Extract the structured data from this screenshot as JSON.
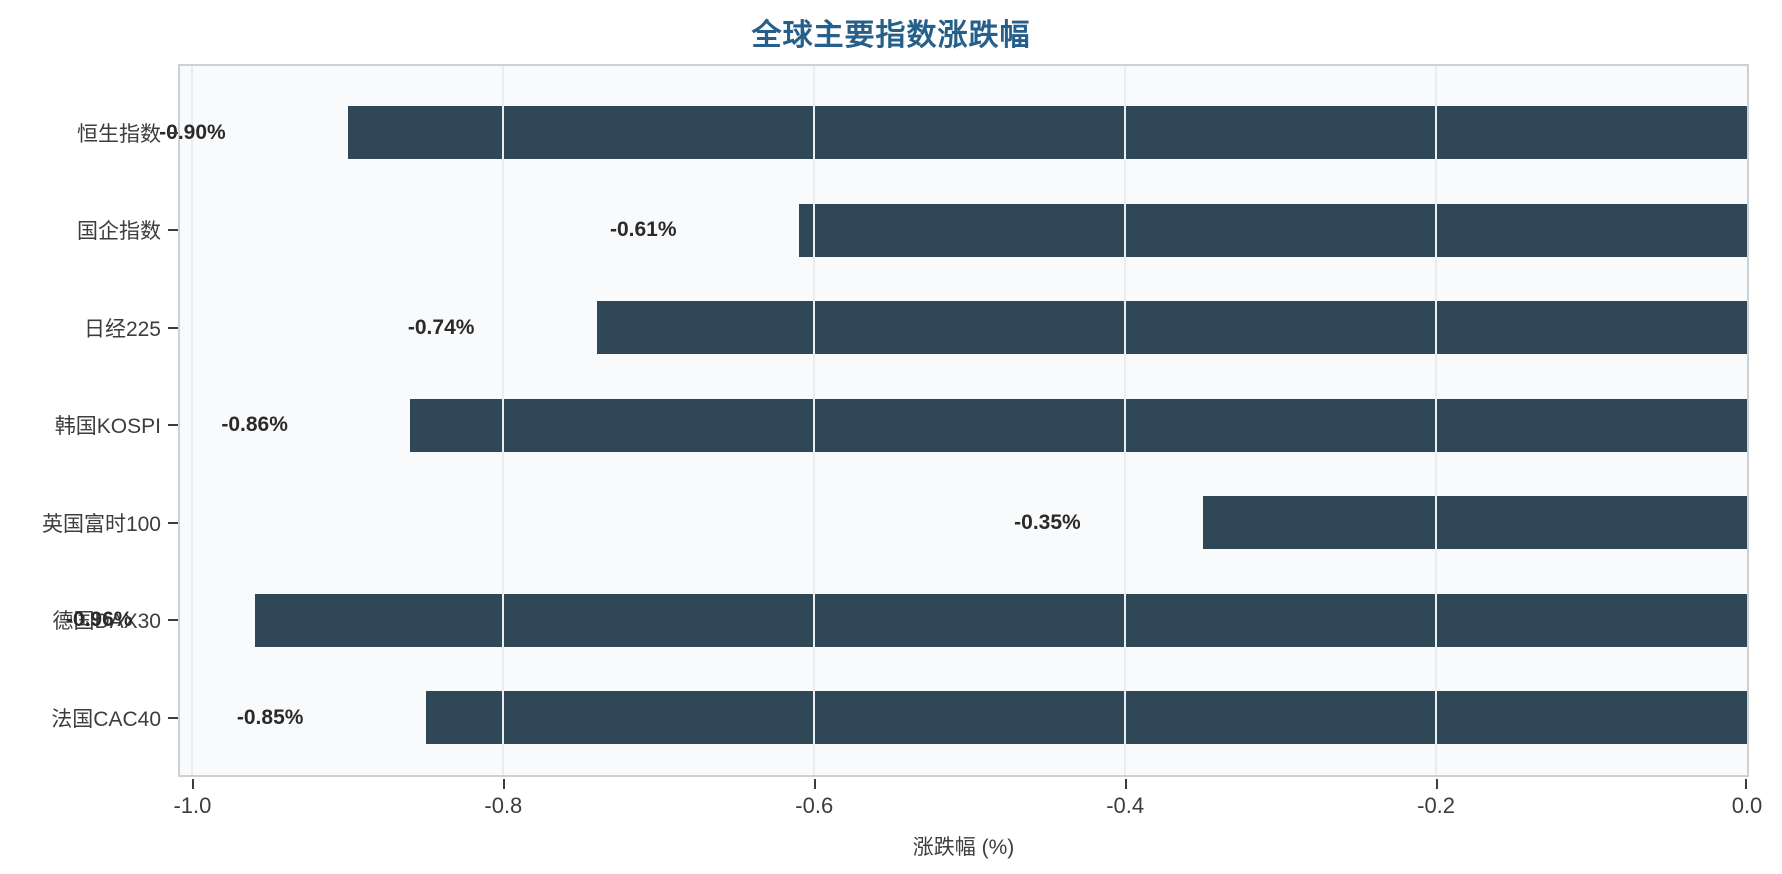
{
  "title": "全球主要指数涨跌幅",
  "colors": {
    "title": "#26608a",
    "bar": "#2f4757",
    "plot_background": "#f8fafb",
    "gridline": "#e9edf0",
    "spine": "#cdd1d4",
    "tick_mark": "#3c3c3c",
    "tick_label": "#3d3d3d",
    "value_label": "#2a2a2a"
  },
  "chart_data": {
    "type": "bar",
    "orientation": "horizontal",
    "title": "全球主要指数涨跌幅",
    "xlabel": "涨跌幅 (%)",
    "ylabel": "",
    "categories": [
      "恒生指数",
      "国企指数",
      "日经225",
      "韩国KOSPI",
      "英国富时100",
      "德国DAX30",
      "法国CAC40"
    ],
    "values": [
      -0.9,
      -0.61,
      -0.74,
      -0.86,
      -0.35,
      -0.96,
      -0.85
    ],
    "value_labels": [
      "-0.90%",
      "-0.61%",
      "-0.74%",
      "-0.86%",
      "-0.35%",
      "-0.96%",
      "-0.85%"
    ],
    "value_label_offset": -0.1,
    "xticks": [
      -1.0,
      -0.8,
      -0.6,
      -0.4,
      -0.2,
      0.0
    ],
    "xtick_labels": [
      "-1.0",
      "-0.8",
      "-0.6",
      "-0.4",
      "-0.2",
      "0.0"
    ],
    "xlim": [
      -1.008,
      0
    ],
    "grid": true,
    "grid_on_top": true,
    "legend": false
  }
}
